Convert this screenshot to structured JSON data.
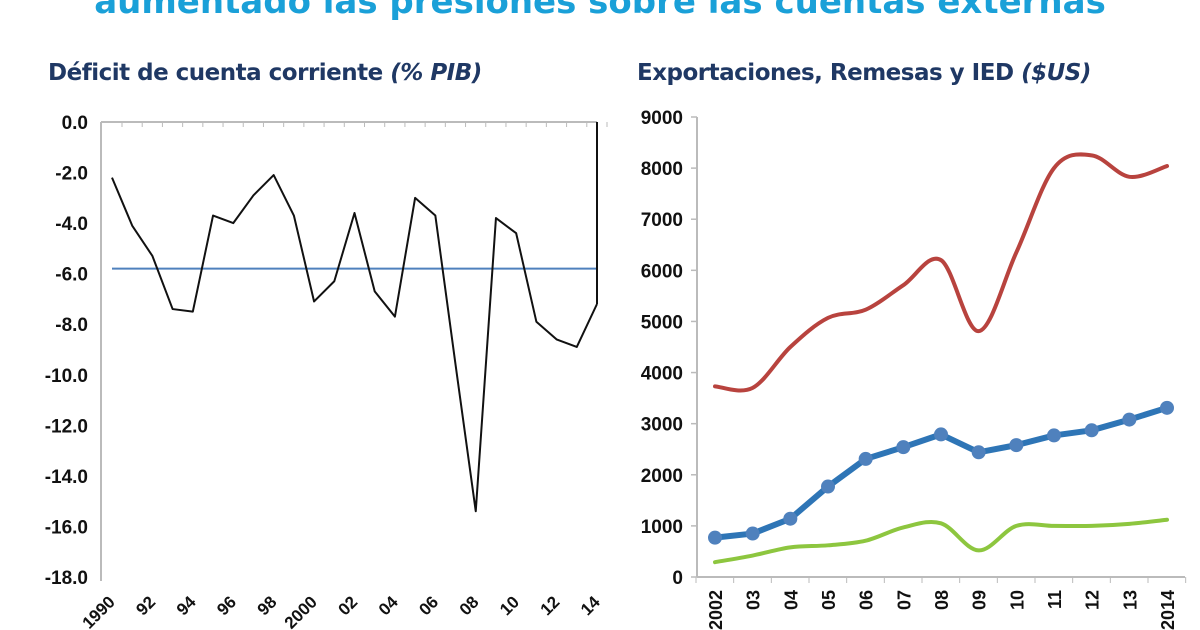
{
  "headline": "aumentado las presiones sobre las cuentas externas",
  "chart_data": [
    {
      "type": "line",
      "title": "Déficit de cuenta corriente",
      "title_unit": "(% PIB)",
      "x": [
        1990,
        1991,
        1992,
        1993,
        1994,
        1995,
        1996,
        1997,
        1998,
        1999,
        2000,
        2001,
        2002,
        2003,
        2004,
        2005,
        2006,
        2007,
        2008,
        2009,
        2010,
        2011,
        2012,
        2013,
        2014
      ],
      "x_tick_labels": [
        "1990",
        "92",
        "94",
        "96",
        "98",
        "2000",
        "02",
        "04",
        "06",
        "08",
        "10",
        "12",
        "14"
      ],
      "series": [
        {
          "values": [
            -2.2,
            -4.1,
            -5.3,
            -7.4,
            -7.5,
            -3.7,
            -4.0,
            -2.9,
            -2.1,
            -3.7,
            -7.1,
            -6.3,
            -3.6,
            -6.7,
            -7.7,
            -3.0,
            -3.7,
            -9.6,
            -15.4,
            -3.8,
            -4.4,
            -7.9,
            -8.6,
            -8.9,
            -7.2
          ],
          "color": "#111111"
        }
      ],
      "reference_line": {
        "value": -5.8,
        "color": "#4f81bd"
      },
      "ylim": [
        -18,
        0
      ],
      "y_ticks": [
        "0.0",
        "-2.0",
        "-4.0",
        "-6.0",
        "-8.0",
        "-10.0",
        "-12.0",
        "-14.0",
        "-16.0",
        "-18.0"
      ],
      "grid": false,
      "legend": "none"
    },
    {
      "type": "line",
      "title": "Exportaciones, Remesas y IED",
      "title_unit": "($US)",
      "x": [
        2002,
        2003,
        2004,
        2005,
        2006,
        2007,
        2008,
        2009,
        2010,
        2011,
        2012,
        2013,
        2014
      ],
      "x_tick_labels": [
        "2002",
        "03",
        "04",
        "05",
        "06",
        "07",
        "08",
        "09",
        "10",
        "11",
        "12",
        "13",
        "2014"
      ],
      "series": [
        {
          "values": [
            3730,
            3700,
            4500,
            5070,
            5230,
            5710,
            6200,
            4810,
            6350,
            8000,
            8250,
            7830,
            8040
          ],
          "color": "#b8433e",
          "smooth": true,
          "markers": false
        },
        {
          "values": [
            770,
            850,
            1140,
            1770,
            2310,
            2540,
            2790,
            2440,
            2580,
            2770,
            2870,
            3080,
            3310
          ],
          "color": "#2e75b6",
          "marker_color": "#4f81bd",
          "smooth": false,
          "markers": true
        },
        {
          "values": [
            290,
            420,
            580,
            620,
            710,
            970,
            1050,
            520,
            1000,
            1000,
            1000,
            1040,
            1120
          ],
          "color": "#8dc63f",
          "smooth": true,
          "markers": false
        }
      ],
      "ylim": [
        0,
        9000
      ],
      "y_ticks": [
        "9000",
        "8000",
        "7000",
        "6000",
        "5000",
        "4000",
        "3000",
        "2000",
        "1000",
        "0"
      ],
      "grid": false,
      "legend": "none"
    }
  ]
}
